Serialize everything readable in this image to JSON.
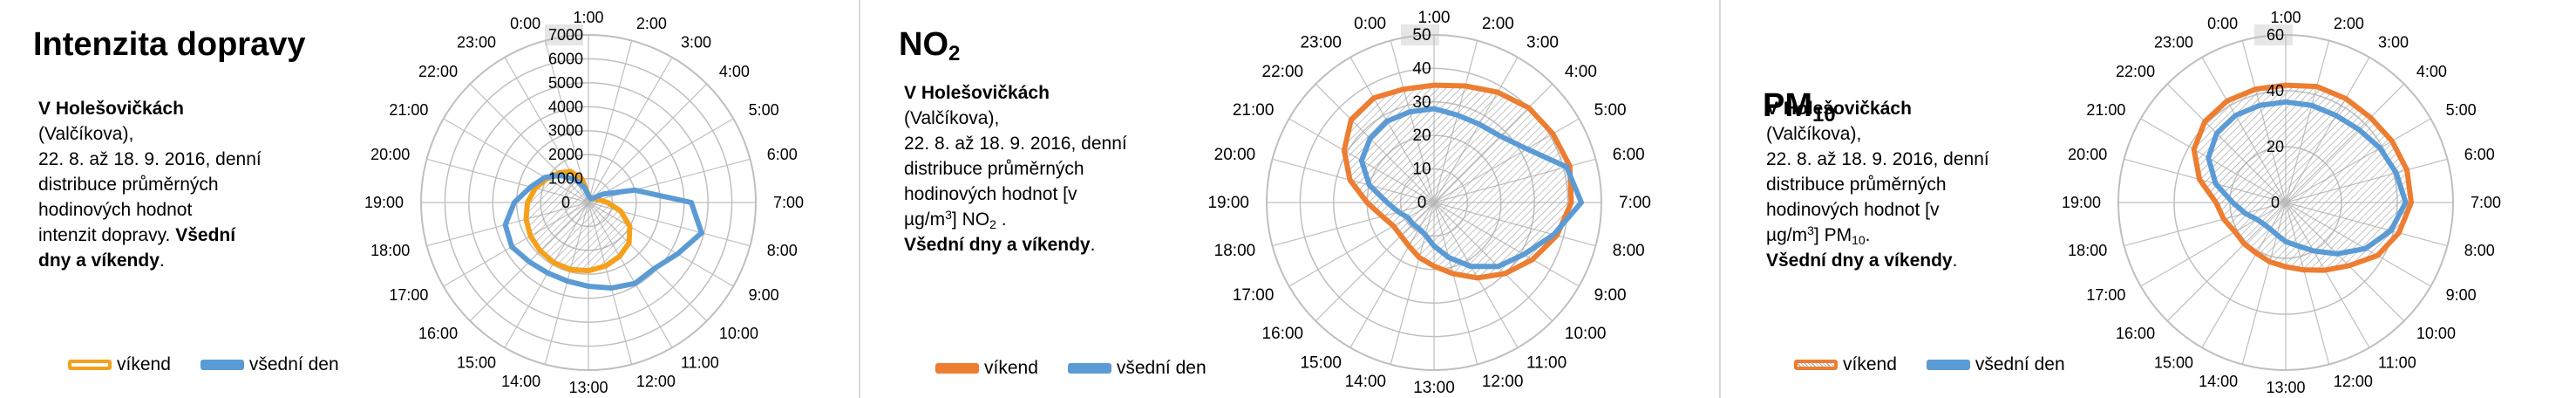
{
  "panels": [
    {
      "title_main": "Intenzita dopravy",
      "title_sub": "",
      "desc_bold": "V Holešovičkách",
      "desc_line2": "(Valčíkova),",
      "desc_line3": "22. 8. až 18. 9. 2016, denní",
      "desc_line4": "distribuce průměrných",
      "desc_line5": "hodinových hodnot",
      "desc_line6_pre": "intenzit dopravy. ",
      "desc_line6_bold": "Všední",
      "desc_line7_bold": "dny a víkendy",
      "desc_line7_post": "."
    },
    {
      "title_main": "NO",
      "title_sub": "2",
      "desc_bold": "V Holešovičkách",
      "desc_line2": "(Valčíkova),",
      "desc_line3": "22. 8. až 18. 9. 2016, denní",
      "desc_line4": "distribuce průměrných",
      "desc_line5": "hodinových hodnot  [v",
      "desc_line6_pre": "µg/m",
      "desc_line6_sup": "3",
      "desc_line6_post": "] NO",
      "desc_line6_sub": "2",
      "desc_line6_end": " .",
      "desc_line7_bold": "Všední dny a víkendy",
      "desc_line7_post": "."
    },
    {
      "title_main": "PM",
      "title_sub": "10",
      "desc_bold": "V Holešovičkách",
      "desc_line2": "(Valčíkova),",
      "desc_line3": "22. 8. až 18. 9. 2016, denní",
      "desc_line4": "distribuce průměrných",
      "desc_line5": "hodinových hodnot  [v",
      "desc_line6_pre": "µg/m",
      "desc_line6_sup": "3",
      "desc_line6_post": "] PM",
      "desc_line6_sub": "10",
      "desc_line6_end": ".",
      "desc_line7_bold": "Všední dny a víkendy",
      "desc_line7_post": "."
    }
  ],
  "colors": {
    "weekend_traffic": "#F5A11C",
    "weekend_pollutant": "#ED7D31",
    "weekday": "#5B9BD5",
    "grid": "#bfbfbf",
    "hatch": "#9e9e9e"
  },
  "chart_data": [
    {
      "type": "radar",
      "categories": [
        "1:00",
        "2:00",
        "3:00",
        "4:00",
        "5:00",
        "6:00",
        "7:00",
        "8:00",
        "9:00",
        "10:00",
        "11:00",
        "12:00",
        "13:00",
        "14:00",
        "15:00",
        "16:00",
        "17:00",
        "18:00",
        "19:00",
        "20:00",
        "21:00",
        "22:00",
        "23:00",
        "0:00"
      ],
      "ticks": [
        "0",
        "1000",
        "2000",
        "3000",
        "4000",
        "5000",
        "6000",
        "7000"
      ],
      "ylim": [
        0,
        7000
      ],
      "legend_position": "bottom",
      "series": [
        {
          "name": "víkend",
          "color_key": "weekend_traffic",
          "values": [
            300,
            250,
            220,
            230,
            300,
            450,
            800,
            1400,
            2000,
            2400,
            2600,
            2750,
            2850,
            2900,
            2900,
            2850,
            2800,
            2700,
            2550,
            2300,
            2000,
            1750,
            1500,
            1000
          ]
        },
        {
          "name": "všední den",
          "color_key": "weekday",
          "values": [
            300,
            220,
            190,
            250,
            700,
            2000,
            4300,
            4900,
            4300,
            3900,
            3900,
            3700,
            3500,
            3400,
            3400,
            3500,
            3700,
            3600,
            3100,
            2500,
            2100,
            1600,
            1100,
            650
          ]
        }
      ]
    },
    {
      "type": "radar",
      "categories": [
        "1:00",
        "2:00",
        "3:00",
        "4:00",
        "5:00",
        "6:00",
        "7:00",
        "8:00",
        "9:00",
        "10:00",
        "11:00",
        "12:00",
        "13:00",
        "14:00",
        "15:00",
        "16:00",
        "17:00",
        "18:00",
        "19:00",
        "20:00",
        "21:00",
        "22:00",
        "23:00",
        "0:00"
      ],
      "ticks": [
        "0",
        "10",
        "20",
        "30",
        "40",
        "50"
      ],
      "ylim": [
        0,
        50
      ],
      "legend_position": "bottom",
      "series": [
        {
          "name": "víkend",
          "color_key": "weekend_pollutant",
          "values": [
            35,
            36,
            38,
            40,
            41,
            42,
            41,
            38,
            34,
            30,
            26,
            22,
            19,
            17,
            15,
            14,
            14,
            16,
            20,
            26,
            31,
            35,
            36,
            35
          ]
        },
        {
          "name": "všední den",
          "color_key": "weekday",
          "values": [
            28,
            27,
            27,
            28,
            32,
            41,
            44,
            37,
            31,
            27,
            22,
            17,
            13,
            10,
            9,
            9,
            9,
            11,
            14,
            20,
            25,
            27,
            28,
            28
          ]
        }
      ]
    },
    {
      "type": "radar",
      "categories": [
        "1:00",
        "2:00",
        "3:00",
        "4:00",
        "5:00",
        "6:00",
        "7:00",
        "8:00",
        "9:00",
        "10:00",
        "11:00",
        "12:00",
        "13:00",
        "14:00",
        "15:00",
        "16:00",
        "17:00",
        "18:00",
        "19:00",
        "20:00",
        "21:00",
        "22:00",
        "23:00",
        "0:00"
      ],
      "ticks": [
        "0",
        "20",
        "40",
        "60"
      ],
      "ylim": [
        0,
        60
      ],
      "legend_position": "bottom",
      "series": [
        {
          "name": "víkend",
          "color_key": "weekend_pollutant",
          "values": [
            42,
            43,
            43,
            43,
            44,
            45,
            45,
            42,
            38,
            32,
            28,
            25,
            23,
            22,
            21,
            21,
            21,
            23,
            25,
            32,
            38,
            41,
            42,
            42
          ]
        },
        {
          "name": "všední den",
          "color_key": "weekday",
          "values": [
            36,
            36,
            36,
            37,
            39,
            41,
            43,
            39,
            33,
            26,
            20,
            16,
            14,
            12,
            11,
            11,
            12,
            15,
            19,
            26,
            32,
            35,
            36,
            36
          ]
        }
      ]
    }
  ]
}
